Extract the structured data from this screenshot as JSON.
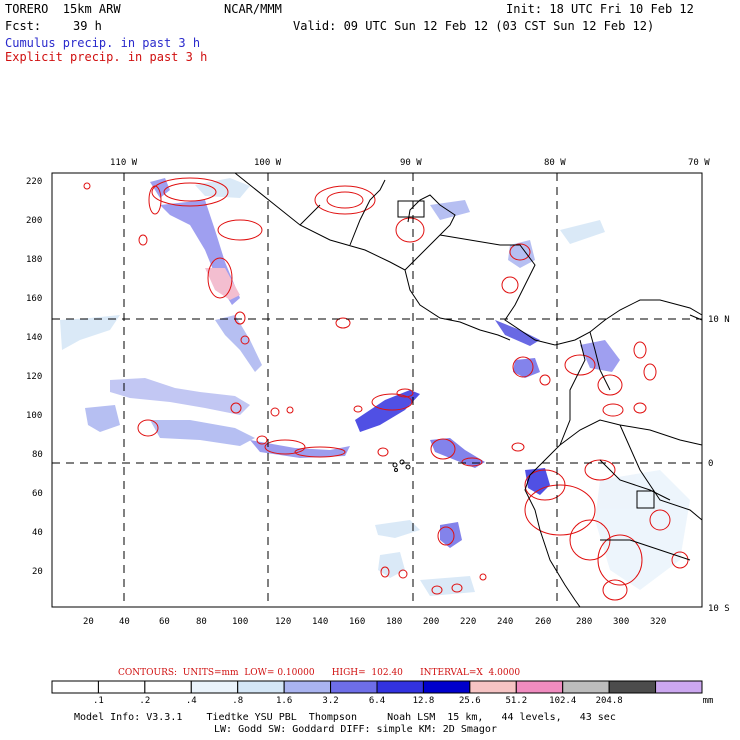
{
  "header": {
    "model": "TORERO  15km ARW",
    "org": "NCAR/MMM",
    "init": "Init: 18 UTC Fri 10 Feb 12",
    "fcst_label": "Fcst:",
    "fcst_hours": "39 h",
    "valid": "Valid: 09 UTC Sun 12 Feb 12 (03 CST Sun 12 Feb 12)",
    "cumulus": "Cumulus precip. in past 3 h",
    "explicit": "Explicit precip. in past 3 h"
  },
  "map": {
    "lon_labels": [
      "110 W",
      "100 W",
      "90 W",
      "80 W",
      "70 W"
    ],
    "lat_labels": [
      "10 N",
      "0",
      "10 S"
    ],
    "y_ticks": [
      "220",
      "200",
      "180",
      "160",
      "140",
      "120",
      "100",
      "80",
      "60",
      "40",
      "20"
    ],
    "x_ticks": [
      "20",
      "40",
      "60",
      "80",
      "100",
      "120",
      "140",
      "160",
      "180",
      "200",
      "220",
      "240",
      "260",
      "280",
      "300",
      "320"
    ],
    "colors": {
      "coast": "#000000",
      "contour": "#e01010",
      "grid": "#000000"
    }
  },
  "contours": {
    "title": "CONTOURS:  UNITS=mm  LOW= 0.10000      HIGH=  102.40      INTERVAL=X  4.0000"
  },
  "colorbar": {
    "labels": [
      ".1",
      ".2",
      ".4",
      ".8",
      "1.6",
      "3.2",
      "6.4",
      "12.8",
      "25.6",
      "51.2",
      "102.4",
      "204.8"
    ],
    "unit": "mm",
    "colors": [
      "#ffffff",
      "#ffffff",
      "#ffffff",
      "#eaf3fb",
      "#d4e6f6",
      "#aab4f0",
      "#6e6ee8",
      "#3232e0",
      "#0000cc",
      "#f6c4c4",
      "#f08cc0",
      "#bcbcbc",
      "#4c4c4c",
      "#cca8f0"
    ]
  },
  "footer": {
    "line1": "Model Info: V3.3.1    Tiedtke YSU PBL  Thompson     Noah LSM  15 km,   44 levels,   43 sec",
    "line2": "LW: Godd SW: Goddard DIFF: simple KM: 2D Smagor"
  }
}
